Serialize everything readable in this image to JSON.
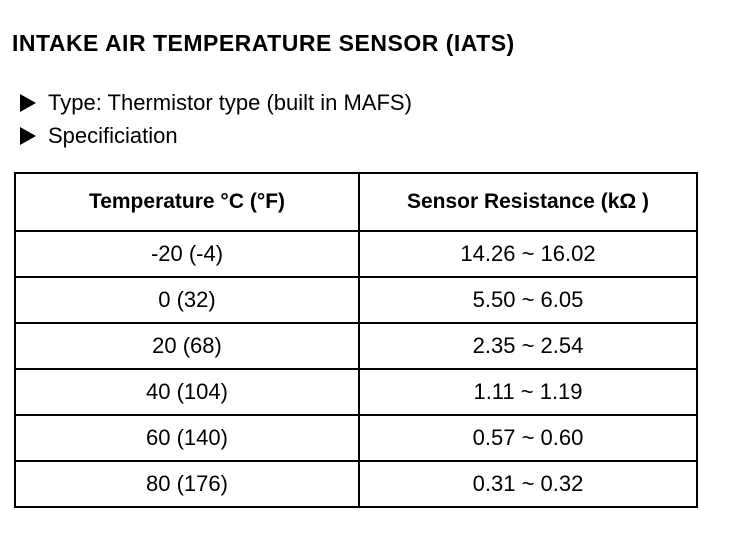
{
  "title": "INTAKE AIR TEMPERATURE SENSOR (IATS)",
  "bullets": [
    "Type: Thermistor type (built in MAFS)",
    "Specificiation"
  ],
  "table": {
    "headers": [
      "Temperature °C (°F)",
      "Sensor Resistance (kΩ )"
    ],
    "rows": [
      [
        "-20 (-4)",
        "14.26 ~ 16.02"
      ],
      [
        "0 (32)",
        "5.50 ~ 6.05"
      ],
      [
        "20 (68)",
        "2.35 ~ 2.54"
      ],
      [
        "40 (104)",
        "1.11 ~ 1.19"
      ],
      [
        "60 (140)",
        "0.57 ~ 0.60"
      ],
      [
        "80 (176)",
        "0.31 ~ 0.32"
      ]
    ]
  }
}
